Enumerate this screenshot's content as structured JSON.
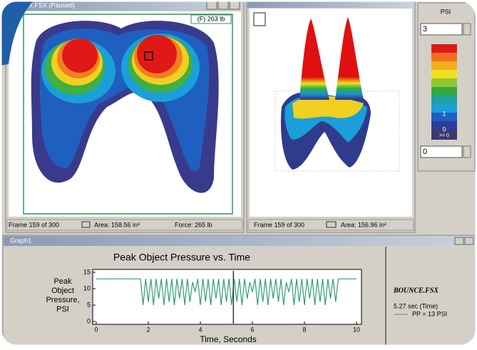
{
  "windows": {
    "pressure_2d": {
      "title": "X.FSX (Paused)",
      "force_tag": "(F) 263 lb",
      "status": [
        "Frame 159 of 300",
        "Area: 158.56 in²",
        "Force: 265 lb"
      ]
    },
    "pressure_3d": {
      "status": [
        "Frame 159 of 300",
        "Area: 156.96 in²"
      ]
    },
    "legend_panel": {
      "unit": "PSI",
      "max_input": "3",
      "min_input": "0",
      "scale_labels": [
        "1",
        "0",
        ">= 0"
      ]
    },
    "graph": {
      "title": "Graph1",
      "legend_file": "BOUNCE.FSX",
      "legend_entry": "PP = 13 PSI"
    }
  },
  "chart_data": {
    "type": "line",
    "title": "Peak Object Pressure vs. Time",
    "x_label": "Time, Seconds",
    "y_label": "Peak Object Pressure, PSI",
    "xlim": [
      0,
      10
    ],
    "ylim": [
      0,
      15
    ],
    "xticks": [
      0,
      2,
      4,
      6,
      8,
      10
    ],
    "yticks": [
      0,
      5,
      10,
      15
    ],
    "cursor": {
      "value": 5.27,
      "label": "5.27 sec (Time)"
    },
    "series": [
      {
        "name": "PP = 13 PSI",
        "color": "#2e9e6e",
        "x": [
          0,
          0.1,
          0.2,
          0.3,
          0.4,
          0.5,
          0.6,
          0.7,
          0.8,
          0.9,
          1,
          1.1,
          1.2,
          1.3,
          1.4,
          1.5,
          1.6,
          1.7,
          1.8,
          1.9,
          2,
          2.1,
          2.2,
          2.3,
          2.4,
          2.5,
          2.6,
          2.7,
          2.8,
          2.9,
          3,
          3.1,
          3.2,
          3.3,
          3.4,
          3.5,
          3.6,
          3.7,
          3.8,
          3.9,
          4,
          4.1,
          4.2,
          4.3,
          4.4,
          4.5,
          4.6,
          4.7,
          4.8,
          4.9,
          5,
          5.1,
          5.2,
          5.3,
          5.4,
          5.5,
          5.6,
          5.7,
          5.8,
          5.9,
          6,
          6.1,
          6.2,
          6.3,
          6.4,
          6.5,
          6.6,
          6.7,
          6.8,
          6.9,
          7,
          7.1,
          7.2,
          7.3,
          7.4,
          7.5,
          7.6,
          7.7,
          7.8,
          7.9,
          8,
          8.1,
          8.2,
          8.3,
          8.4,
          8.5,
          8.6,
          8.7,
          8.8,
          8.9,
          9,
          9.1,
          9.2,
          9.3,
          9.4,
          9.5,
          9.6,
          9.7,
          9.8,
          9.9,
          10
        ],
        "values": [
          13,
          13,
          13,
          13,
          13,
          13,
          13,
          13,
          13,
          13,
          13,
          13,
          13,
          13,
          13,
          13,
          13,
          13,
          5,
          13,
          6,
          13,
          5,
          13,
          7,
          13,
          5,
          13,
          6,
          13,
          5,
          13,
          7,
          13,
          5,
          13,
          6,
          12,
          9,
          13,
          5,
          13,
          6,
          13,
          5,
          13,
          7,
          13,
          5,
          13,
          6,
          13,
          5,
          13,
          6,
          13,
          5,
          13,
          7,
          12,
          9,
          13,
          5,
          13,
          6,
          13,
          5,
          13,
          7,
          13,
          6,
          13,
          5,
          12,
          9,
          13,
          5,
          13,
          6,
          13,
          5,
          13,
          7,
          13,
          5,
          13,
          6,
          13,
          5,
          13,
          7,
          13,
          6,
          13,
          13,
          13,
          13,
          13,
          13,
          13,
          13
        ]
      }
    ]
  }
}
